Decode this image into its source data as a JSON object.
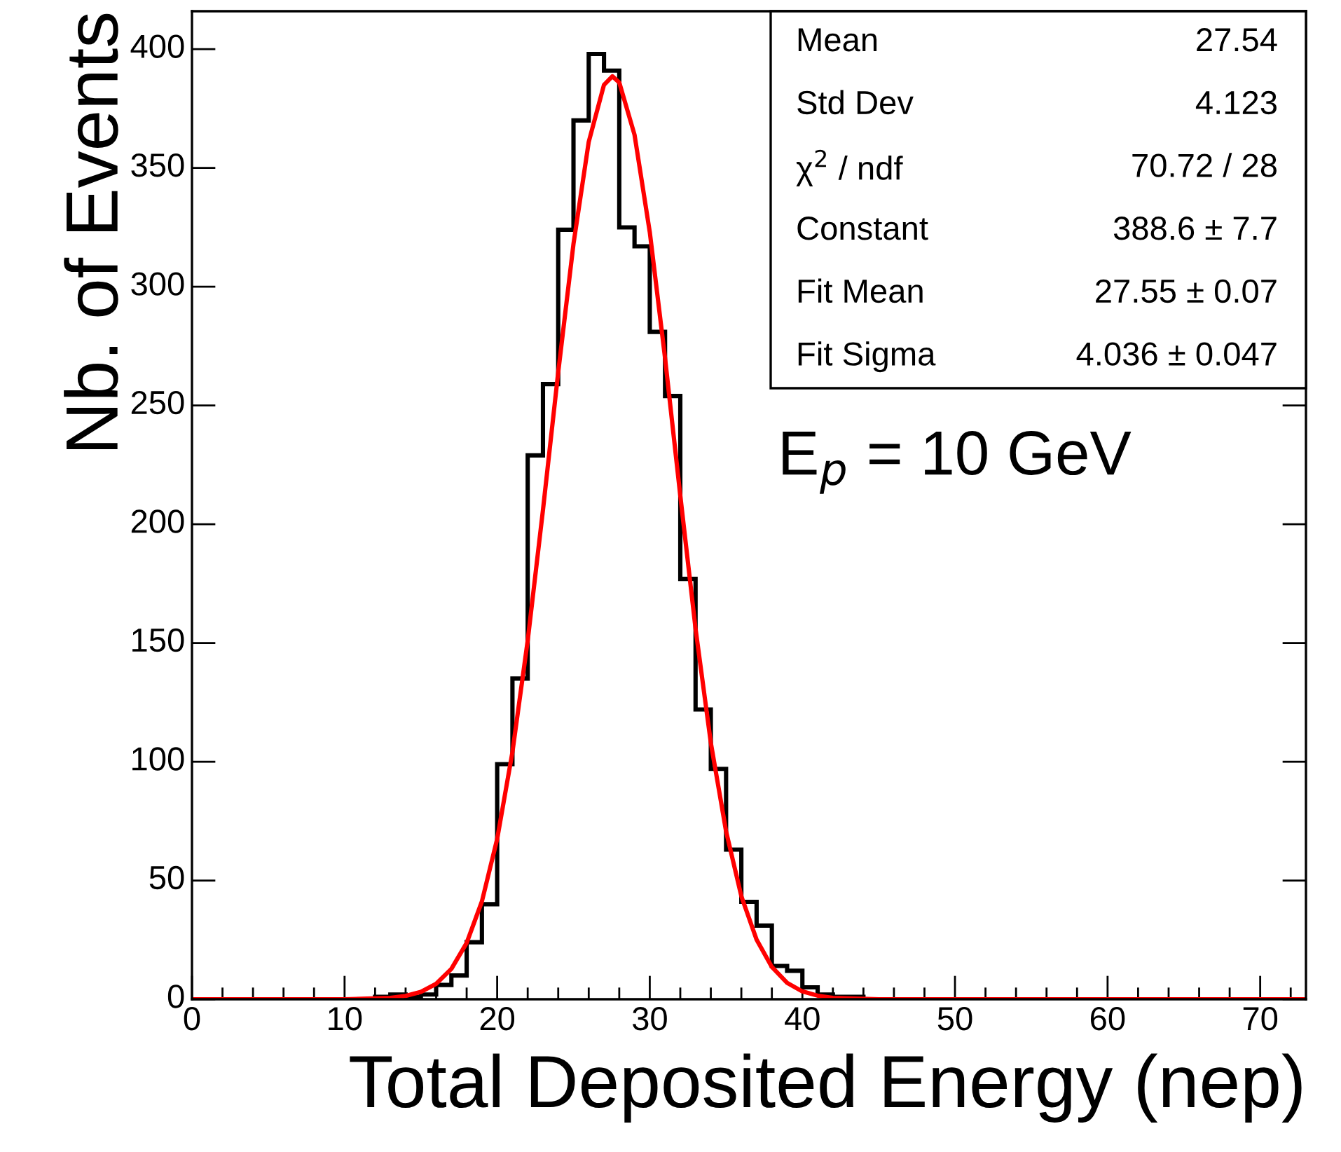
{
  "chart_data": {
    "type": "histogram",
    "xlabel": "Total Deposited Energy (nep)",
    "ylabel": "Nb. of Events",
    "bins": [
      0,
      1,
      2,
      3,
      4,
      5,
      6,
      7,
      8,
      9,
      10,
      11,
      12,
      13,
      14,
      15,
      16,
      17,
      18,
      19,
      20,
      21,
      22,
      23,
      24,
      25,
      26,
      27,
      28,
      29,
      30,
      31,
      32,
      33,
      34,
      35,
      36,
      37,
      38,
      39,
      40,
      41,
      42,
      43,
      44,
      45,
      46,
      47,
      48,
      49,
      50,
      51,
      52,
      53,
      54,
      55,
      56,
      57,
      58,
      59,
      60,
      61,
      62,
      63,
      64,
      65,
      66,
      67,
      68,
      69,
      70,
      71,
      72,
      73
    ],
    "series": [
      {
        "color": "#000000",
        "values": [
          0,
          0,
          0,
          0,
          0,
          0,
          0,
          0,
          0,
          0,
          0,
          0,
          1,
          2,
          1,
          2,
          6,
          10,
          24,
          40,
          99,
          135,
          229,
          259,
          324,
          370,
          398,
          391,
          325,
          317,
          281,
          254,
          177,
          122,
          97,
          63,
          41,
          31,
          14,
          12,
          5,
          2,
          1,
          1,
          0,
          0,
          0,
          0,
          0,
          0,
          0,
          0,
          0,
          0,
          0,
          0,
          0,
          0,
          0,
          0,
          0,
          0,
          0,
          0,
          0,
          0,
          0,
          0,
          0,
          0,
          0,
          0,
          0
        ]
      },
      {
        "type": "line",
        "color": "#ff0000",
        "x": [
          0,
          5,
          10,
          13,
          14,
          15,
          16,
          17,
          18,
          19,
          20,
          21,
          22,
          23,
          24,
          25,
          26,
          27,
          27.55,
          28,
          29,
          30,
          31,
          32,
          33,
          34,
          35,
          36,
          37,
          38,
          39,
          40,
          41,
          42,
          45,
          50,
          60,
          73
        ],
        "values": [
          0,
          0,
          0,
          0.6,
          1.4,
          3.1,
          6.5,
          12.8,
          23.7,
          41.2,
          67.5,
          104.1,
          151,
          206,
          264,
          318,
          361,
          385,
          388.6,
          386,
          364,
          323,
          270,
          212,
          156,
          108,
          70.7,
          43.4,
          25.1,
          13.6,
          6.9,
          3.3,
          1.5,
          0.6,
          0,
          0,
          0,
          0
        ]
      }
    ],
    "xlim": [
      0,
      73
    ],
    "ylim": [
      0,
      416
    ],
    "xticks": [
      0,
      10,
      20,
      30,
      40,
      50,
      60,
      70
    ],
    "yticks": [
      0,
      50,
      100,
      150,
      200,
      250,
      300,
      350,
      400
    ],
    "grid": false,
    "legend": false,
    "annotations": [
      "Mean",
      "27.54",
      "Std Dev",
      "4.123",
      "χ$^{2}$ / ndf",
      "70.72 / 28",
      "Constant",
      "388.6 ± 7.7",
      "Fit Mean",
      "27.55 ± 0.07",
      "Fit Sigma",
      "4.036 ± 0.047",
      "E$_{p}$ = 10 GeV"
    ]
  }
}
